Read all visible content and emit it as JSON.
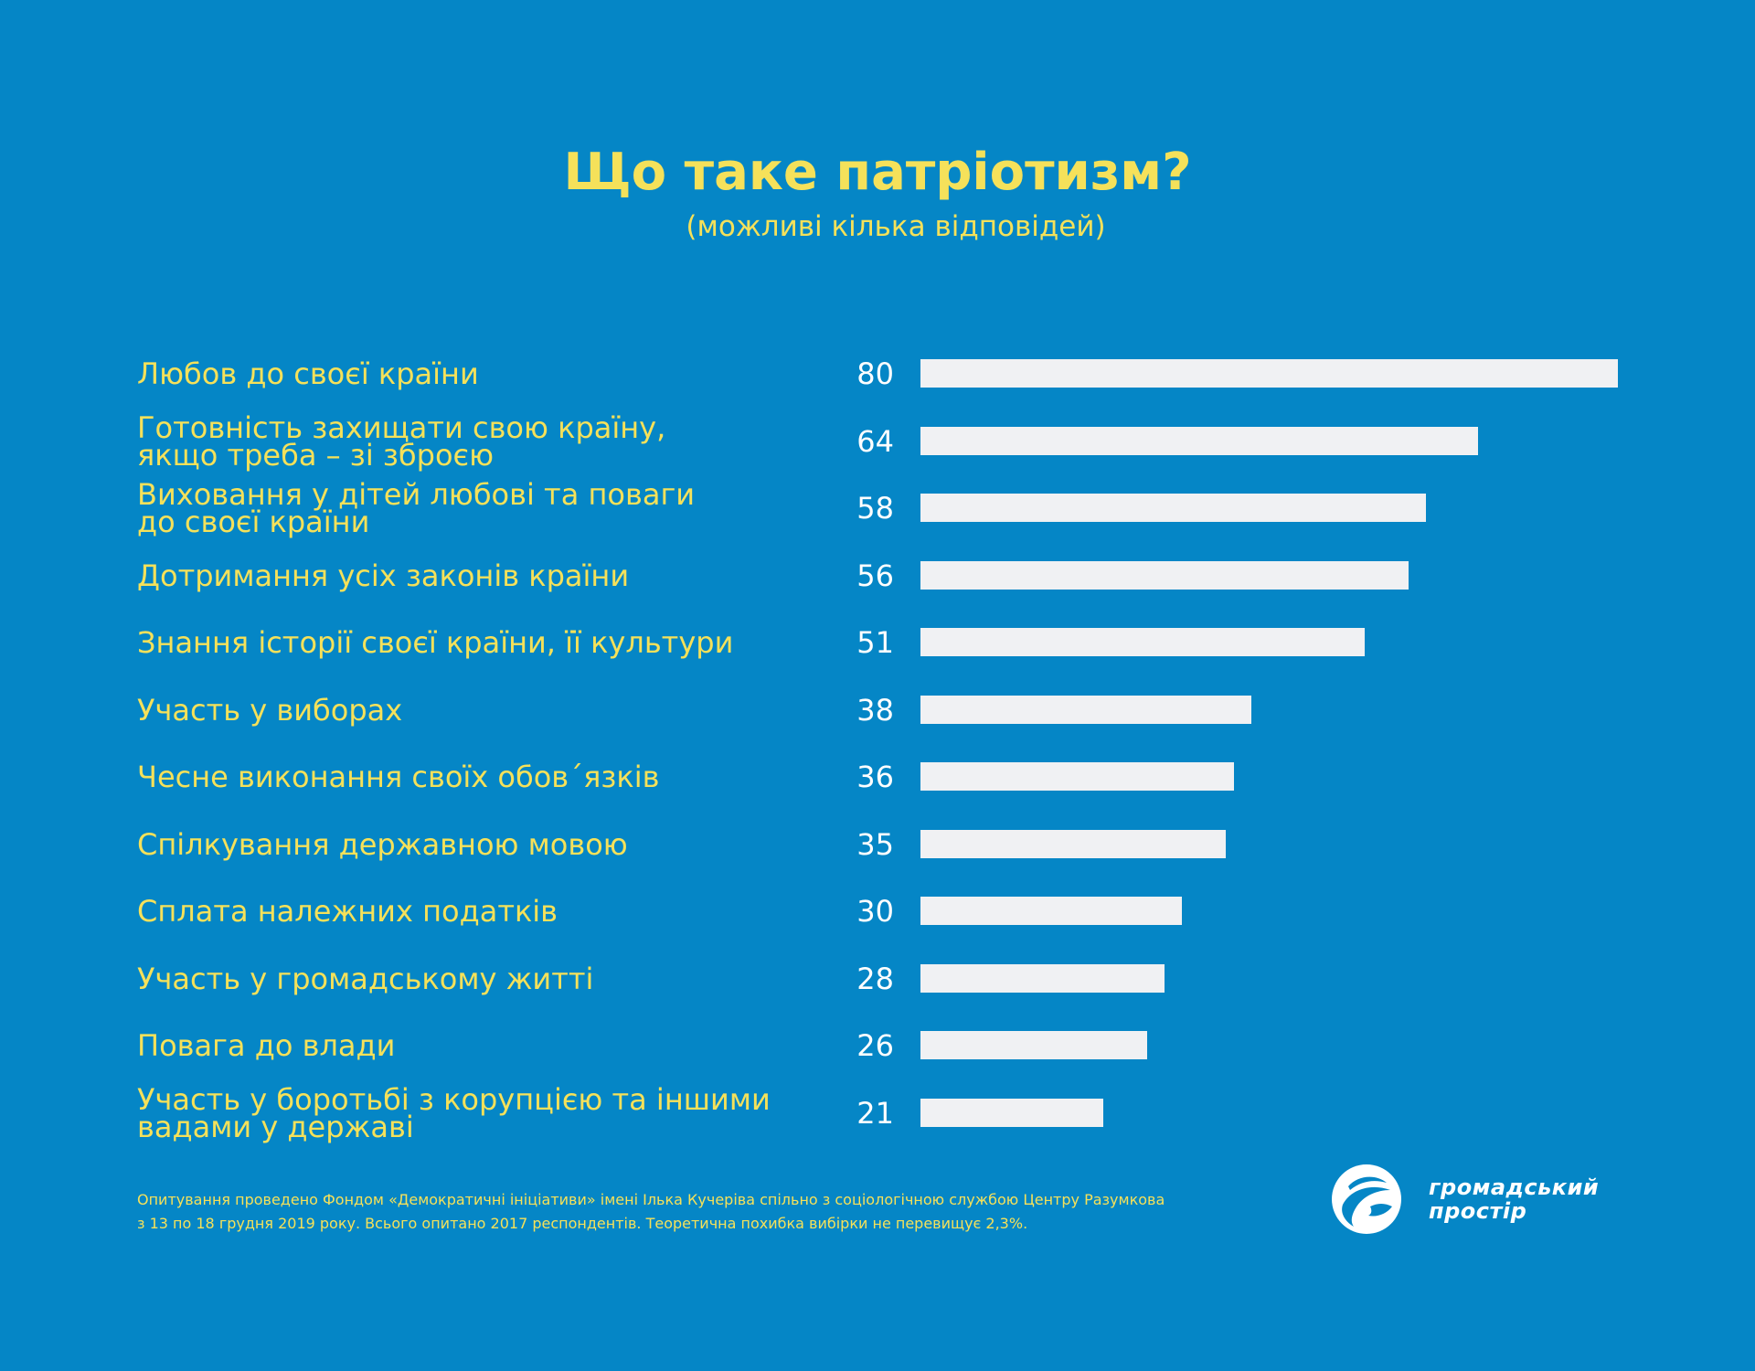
{
  "title": "Що таке патріотизм?",
  "subtitle": "(можливі кілька відповідей)",
  "chart_data": {
    "type": "bar",
    "orientation": "horizontal",
    "title": "Що таке патріотизм?",
    "subtitle": "(можливі кілька відповідей)",
    "categories": [
      "Любов до своєї країни",
      "Готовність захищати свою країну,\nякщо треба – зі зброєю",
      "Виховання у дітей любові та поваги\nдо своєї країни",
      "Дотримання усіх законів країни",
      "Знання історії своєї країни, її культури",
      "Участь у виборах",
      "Чесне виконання своїх обов´язків",
      "Спілкування державною мовою",
      "Сплата належних податків",
      "Участь у громадському житті",
      "Повага до влади",
      "Участь у боротьбі з корупцією та іншими\nвадами у державі"
    ],
    "values": [
      80,
      64,
      58,
      56,
      51,
      38,
      36,
      35,
      30,
      28,
      26,
      21
    ],
    "value_labels": [
      "80",
      "64",
      "58",
      "56",
      "51",
      "38",
      "36",
      "35",
      "30",
      "28",
      "26",
      "21"
    ],
    "xlim": [
      0,
      80
    ],
    "grid": false,
    "legend": "none"
  },
  "footnote": {
    "line1": "Опитування проведено Фондом «Демократичні ініціативи» імені Ілька Кучеріва спільно з соціологічною службою Центру Разумкова",
    "line2": "з 13 по 18 грудня 2019 року. Всього опитано 2017 респондентів. Теоретична похибка вибірки не перевищує 2,3%."
  },
  "logo": {
    "line1": "громадський",
    "line2": "простір"
  },
  "colors": {
    "background": "#0586c6",
    "accent": "#f5e15a",
    "bar": "#f0f1f3",
    "value_text": "#ffffff"
  }
}
